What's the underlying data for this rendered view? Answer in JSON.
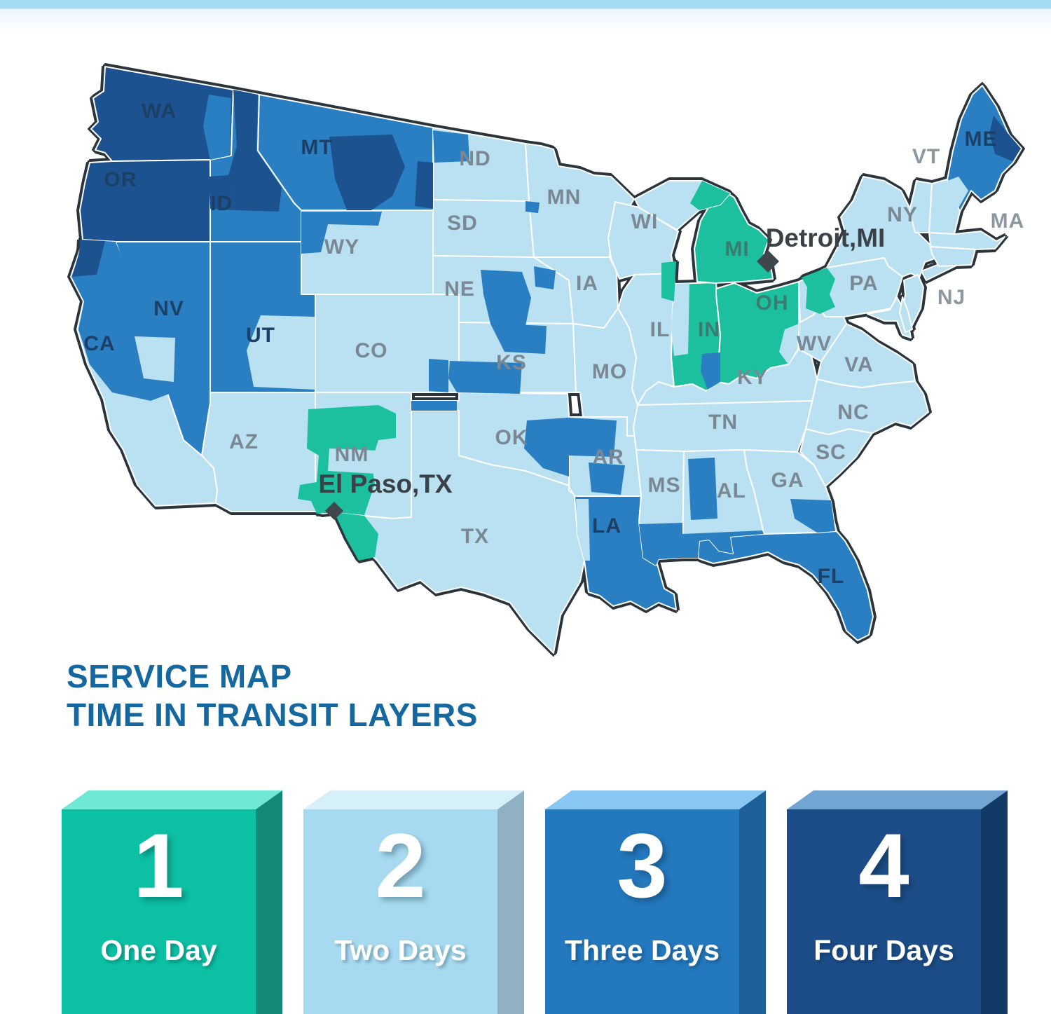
{
  "page": {
    "top_strip_color": "#a5dcf3",
    "background": "#ffffff"
  },
  "title": {
    "line1": "SERVICE MAP",
    "line2": "TIME IN TRANSIT LAYERS",
    "color": "#15689f"
  },
  "map": {
    "layer_colors": {
      "1": "#1cc09e",
      "2": "#b9e1f2",
      "3": "#2a7fc3",
      "4": "#1d5290"
    },
    "label_colors": {
      "gray": "#7b8894",
      "dark": "#1c4065",
      "teal": "#3a7c6f",
      "outside": "#8d979f"
    },
    "state_border_color": "#ffffff",
    "country_outline_color": "#2a343a",
    "city_label_color": "#3b4247",
    "marker_color": "#40474c",
    "states": [
      {
        "abbr": "WA",
        "layer": 4,
        "label": "WA",
        "label_style": "dark"
      },
      {
        "abbr": "OR",
        "layer": 4,
        "label": "OR",
        "label_style": "dark"
      },
      {
        "abbr": "CA",
        "layer": 2,
        "label": "CA",
        "label_style": "dark"
      },
      {
        "abbr": "NV",
        "layer": 3,
        "label": "NV",
        "label_style": "dark"
      },
      {
        "abbr": "ID",
        "layer": 3,
        "label": "ID",
        "label_style": "dark"
      },
      {
        "abbr": "MT",
        "layer": 3,
        "label": "MT",
        "label_style": "dark"
      },
      {
        "abbr": "WY",
        "layer": 2,
        "label": "WY",
        "label_style": "gray"
      },
      {
        "abbr": "UT",
        "layer": 3,
        "label": "UT",
        "label_style": "dark"
      },
      {
        "abbr": "CO",
        "layer": 2,
        "label": "CO",
        "label_style": "gray"
      },
      {
        "abbr": "AZ",
        "layer": 2,
        "label": "AZ",
        "label_style": "gray"
      },
      {
        "abbr": "NM",
        "layer": 2,
        "label": "NM",
        "label_style": "gray"
      },
      {
        "abbr": "ND",
        "layer": 2,
        "label": "ND",
        "label_style": "gray"
      },
      {
        "abbr": "SD",
        "layer": 2,
        "label": "SD",
        "label_style": "gray"
      },
      {
        "abbr": "NE",
        "layer": 2,
        "label": "NE",
        "label_style": "gray"
      },
      {
        "abbr": "KS",
        "layer": 2,
        "label": "KS",
        "label_style": "gray"
      },
      {
        "abbr": "OK",
        "layer": 2,
        "label": "OK",
        "label_style": "gray"
      },
      {
        "abbr": "TX",
        "layer": 2,
        "label": "TX",
        "label_style": "gray"
      },
      {
        "abbr": "MN",
        "layer": 2,
        "label": "MN",
        "label_style": "gray"
      },
      {
        "abbr": "IA",
        "layer": 2,
        "label": "IA",
        "label_style": "gray"
      },
      {
        "abbr": "MO",
        "layer": 2,
        "label": "MO",
        "label_style": "gray"
      },
      {
        "abbr": "AR",
        "layer": 2,
        "label": "AR",
        "label_style": "gray"
      },
      {
        "abbr": "LA",
        "layer": 3,
        "label": "LA",
        "label_style": "dark"
      },
      {
        "abbr": "WI",
        "layer": 2,
        "label": "WI",
        "label_style": "gray"
      },
      {
        "abbr": "IL",
        "layer": 2,
        "label": "IL",
        "label_style": "gray"
      },
      {
        "abbr": "IN",
        "layer": 1,
        "label": "IN",
        "label_style": "teal"
      },
      {
        "abbr": "MI",
        "layer": 1,
        "label": "MI",
        "label_style": "teal"
      },
      {
        "abbr": "UP",
        "layer": 2,
        "label": null,
        "label_style": "gray"
      },
      {
        "abbr": "OH",
        "layer": 1,
        "label": "OH",
        "label_style": "teal"
      },
      {
        "abbr": "KY",
        "layer": 2,
        "label": "KY",
        "label_style": "gray"
      },
      {
        "abbr": "TN",
        "layer": 2,
        "label": "TN",
        "label_style": "gray"
      },
      {
        "abbr": "MS",
        "layer": 2,
        "label": "MS",
        "label_style": "gray"
      },
      {
        "abbr": "AL",
        "layer": 2,
        "label": "AL",
        "label_style": "gray"
      },
      {
        "abbr": "GA",
        "layer": 2,
        "label": "GA",
        "label_style": "gray"
      },
      {
        "abbr": "FL",
        "layer": 3,
        "label": "FL",
        "label_style": "dark"
      },
      {
        "abbr": "SC",
        "layer": 2,
        "label": "SC",
        "label_style": "gray"
      },
      {
        "abbr": "NC",
        "layer": 2,
        "label": "NC",
        "label_style": "gray"
      },
      {
        "abbr": "VA",
        "layer": 2,
        "label": "VA",
        "label_style": "gray"
      },
      {
        "abbr": "WV",
        "layer": 2,
        "label": "WV",
        "label_style": "gray"
      },
      {
        "abbr": "PA",
        "layer": 2,
        "label": "PA",
        "label_style": "gray"
      },
      {
        "abbr": "NY",
        "layer": 2,
        "label": "NY",
        "label_style": "gray"
      },
      {
        "abbr": "NJ",
        "layer": 2,
        "label": "NJ",
        "label_style": "outside"
      },
      {
        "abbr": "LI",
        "layer": 2,
        "label": null,
        "label_style": "gray"
      },
      {
        "abbr": "VT",
        "layer": 2,
        "label": "VT",
        "label_style": "outside"
      },
      {
        "abbr": "NH",
        "layer": 2,
        "label": null,
        "label_style": "gray"
      },
      {
        "abbr": "ME",
        "layer": 3,
        "label": "ME",
        "label_style": "dark"
      },
      {
        "abbr": "MA",
        "layer": 2,
        "label": "MA",
        "label_style": "outside"
      },
      {
        "abbr": "CTRI",
        "layer": 2,
        "label": null,
        "label_style": "gray"
      },
      {
        "abbr": "MD",
        "layer": 2,
        "label": null,
        "label_style": "gray"
      },
      {
        "abbr": "DE",
        "layer": 2,
        "label": null,
        "label_style": "gray"
      }
    ],
    "patches": [
      {
        "id": "id-panhandle",
        "layer": 4
      },
      {
        "id": "id-west",
        "layer": 4
      },
      {
        "id": "mt-central",
        "layer": 4
      },
      {
        "id": "mt-east",
        "layer": 4
      },
      {
        "id": "wa-east",
        "layer": 3
      },
      {
        "id": "nd-northwest",
        "layer": 3
      },
      {
        "id": "sd-northeast",
        "layer": 3
      },
      {
        "id": "ca-north",
        "layer": 3
      },
      {
        "id": "ca-coast",
        "layer": 4
      },
      {
        "id": "nv-center",
        "layer": 2
      },
      {
        "id": "ut-east",
        "layer": 2
      },
      {
        "id": "wy-west",
        "layer": 3
      },
      {
        "id": "co-east",
        "layer": 3
      },
      {
        "id": "ok-panhandle",
        "layer": 3
      },
      {
        "id": "ks-central",
        "layer": 3
      },
      {
        "id": "ks-northeast",
        "layer": 3
      },
      {
        "id": "ne-east",
        "layer": 3
      },
      {
        "id": "ia-west",
        "layer": 3
      },
      {
        "id": "ok-east",
        "layer": 3
      },
      {
        "id": "ar-northwest",
        "layer": 3
      },
      {
        "id": "ar-central",
        "layer": 3
      },
      {
        "id": "la-west",
        "layer": 2
      },
      {
        "id": "ms-south",
        "layer": 3
      },
      {
        "id": "al-central",
        "layer": 3
      },
      {
        "id": "al-south",
        "layer": 3
      },
      {
        "id": "ga-southeast",
        "layer": 3
      },
      {
        "id": "nm-central",
        "layer": 1
      },
      {
        "id": "nm-notch",
        "layer": 2
      },
      {
        "id": "tx-elpaso",
        "layer": 1
      },
      {
        "id": "me-south",
        "layer": 2
      },
      {
        "id": "me-northeast",
        "layer": 4
      },
      {
        "id": "in-west",
        "layer": 2
      },
      {
        "id": "in-southeast",
        "layer": 3
      },
      {
        "id": "up-east",
        "layer": 1
      },
      {
        "id": "lakeshore-teal",
        "layer": 1
      },
      {
        "id": "pa-west",
        "layer": 1
      },
      {
        "id": "oh-southeast",
        "layer": 2
      }
    ],
    "markers": [
      {
        "id": "detroit",
        "label": "Detroit,MI"
      },
      {
        "id": "elpaso",
        "label": "El Paso,TX"
      }
    ]
  },
  "legend": {
    "items": [
      {
        "number": "1",
        "label": "One Day",
        "front": "#0cc0a3",
        "top": "#6fe9d6",
        "side": "#128a77"
      },
      {
        "number": "2",
        "label": "Two Days",
        "front": "#a7daf0",
        "top": "#d6f0fa",
        "side": "#8fb1c3"
      },
      {
        "number": "3",
        "label": "Three Days",
        "front": "#2478bd",
        "top": "#88c7f2",
        "side": "#1d5f99"
      },
      {
        "number": "4",
        "label": "Four Days",
        "front": "#1c4d88",
        "top": "#73a5d3",
        "side": "#123a66"
      }
    ]
  }
}
